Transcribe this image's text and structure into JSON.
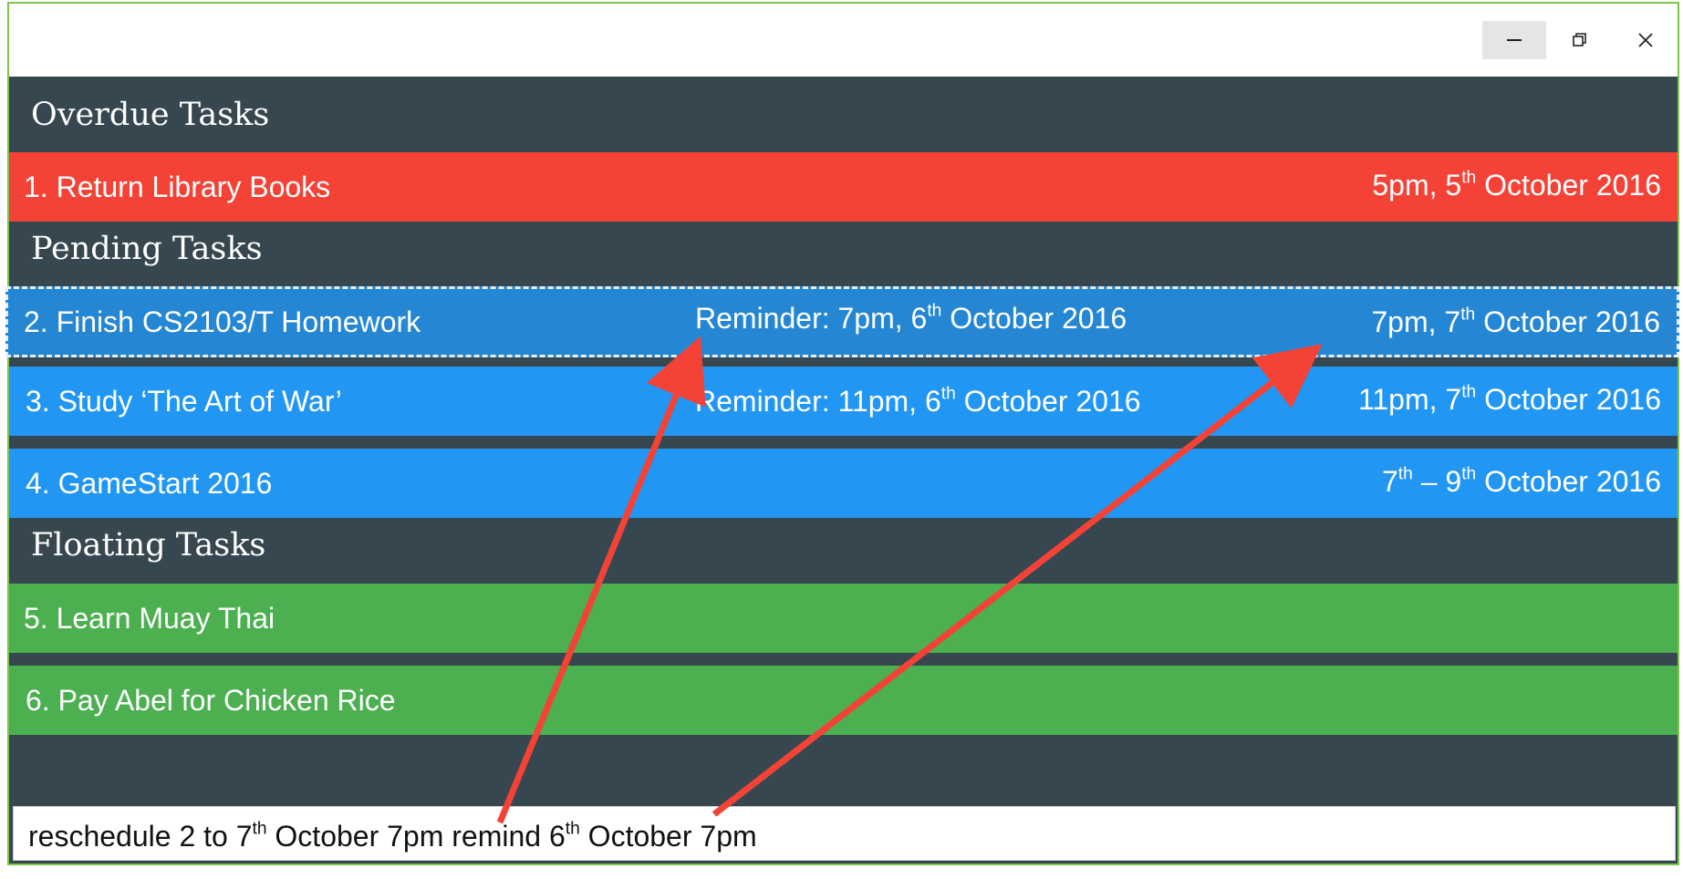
{
  "window": {
    "controls": {
      "minimize": "–",
      "maximize": "⧉",
      "close": "✕"
    }
  },
  "sections": {
    "overdue": {
      "title": "Overdue Tasks",
      "tasks": [
        {
          "name": "1. Return Library Books",
          "date": {
            "pre": "5pm, 5",
            "sup": "th",
            "post": " October 2016"
          }
        }
      ]
    },
    "pending": {
      "title": "Pending Tasks",
      "tasks": [
        {
          "name": "2. Finish CS2103/T Homework",
          "reminder": {
            "pre": "Reminder: 7pm, 6",
            "sup": "th",
            "post": " October 2016"
          },
          "date": {
            "pre": "7pm, 7",
            "sup": "th",
            "post": " October 2016"
          },
          "selected": true
        },
        {
          "name": "3. Study ‘The Art of War’",
          "reminder": {
            "pre": "Reminder: 11pm, 6",
            "sup": "th",
            "post": " October 2016"
          },
          "date": {
            "pre": "11pm, 7",
            "sup": "th",
            "post": " October 2016"
          }
        },
        {
          "name": "4. GameStart 2016",
          "date": {
            "a": "7",
            "sup1": "th",
            "mid": " – 9",
            "sup2": "th",
            "post": " October 2016"
          }
        }
      ]
    },
    "floating": {
      "title": "Floating Tasks",
      "tasks": [
        {
          "name": "5. Learn Muay Thai"
        },
        {
          "name": "6. Pay Abel for Chicken Rice"
        }
      ]
    }
  },
  "command": {
    "p1": "reschedule 2 to 7",
    "s1": "th",
    "p2": " October 7pm remind 6",
    "s2": "th",
    "p3": " October 7pm"
  },
  "colors": {
    "overdue": "#f44336",
    "pending_selected": "#2587d4",
    "pending": "#2196f3",
    "floating": "#4caf50",
    "panel": "#37474f",
    "annotation_arrow": "#f44336"
  }
}
